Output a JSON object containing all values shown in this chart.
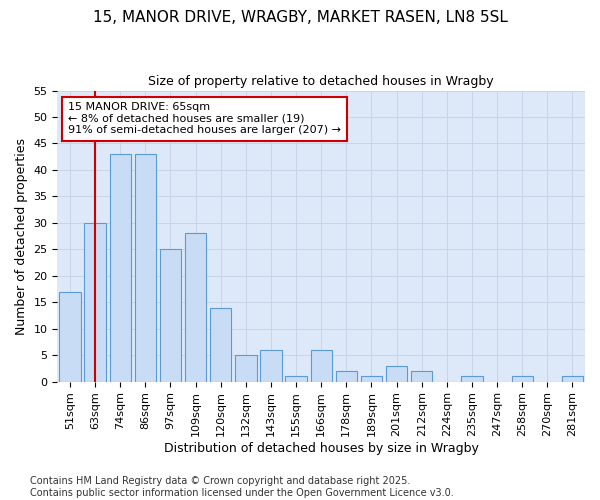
{
  "title_line1": "15, MANOR DRIVE, WRAGBY, MARKET RASEN, LN8 5SL",
  "title_line2": "Size of property relative to detached houses in Wragby",
  "xlabel": "Distribution of detached houses by size in Wragby",
  "ylabel": "Number of detached properties",
  "categories": [
    "51sqm",
    "63sqm",
    "74sqm",
    "86sqm",
    "97sqm",
    "109sqm",
    "120sqm",
    "132sqm",
    "143sqm",
    "155sqm",
    "166sqm",
    "178sqm",
    "189sqm",
    "201sqm",
    "212sqm",
    "224sqm",
    "235sqm",
    "247sqm",
    "258sqm",
    "270sqm",
    "281sqm"
  ],
  "values": [
    17,
    30,
    43,
    43,
    25,
    28,
    14,
    5,
    6,
    1,
    6,
    2,
    1,
    3,
    2,
    0,
    1,
    0,
    1,
    0,
    1
  ],
  "bar_color": "#c8ddf5",
  "bar_edge_color": "#5b9bd5",
  "vline_x": 1,
  "vline_color": "#cc0000",
  "annotation_text": "15 MANOR DRIVE: 65sqm\n← 8% of detached houses are smaller (19)\n91% of semi-detached houses are larger (207) →",
  "annotation_box_color": "#ffffff",
  "annotation_box_edge_color": "#cc0000",
  "ylim": [
    0,
    55
  ],
  "yticks": [
    0,
    5,
    10,
    15,
    20,
    25,
    30,
    35,
    40,
    45,
    50,
    55
  ],
  "grid_color": "#c8d4e8",
  "plot_bg_color": "#dde8f8",
  "fig_bg_color": "#ffffff",
  "footer_text": "Contains HM Land Registry data © Crown copyright and database right 2025.\nContains public sector information licensed under the Open Government Licence v3.0.",
  "title_fontsize": 11,
  "subtitle_fontsize": 9,
  "axis_label_fontsize": 9,
  "tick_fontsize": 8,
  "annotation_fontsize": 8,
  "footer_fontsize": 7
}
